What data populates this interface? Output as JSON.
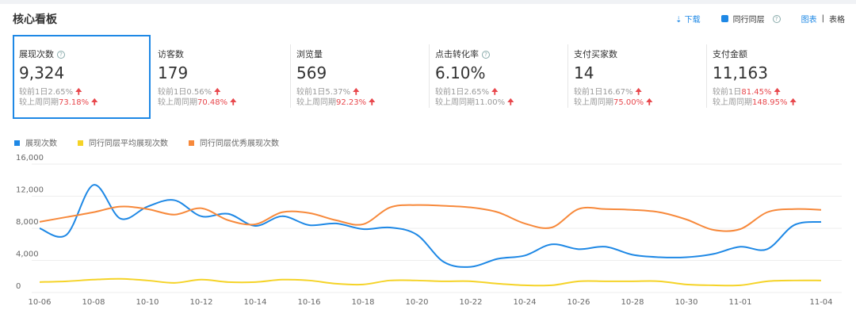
{
  "header": {
    "title": "核心看板",
    "download": "下载",
    "peer_toggle": "同行同层",
    "view_chart": "图表",
    "view_table": "表格"
  },
  "metrics": [
    {
      "label": "展现次数",
      "help": true,
      "value": "9,324",
      "selected": true,
      "changes": [
        {
          "label": "较前1日",
          "value": "2.65%",
          "color": "#999999"
        },
        {
          "label": "较上周同期",
          "value": "73.18%",
          "color": "#e8474c"
        }
      ]
    },
    {
      "label": "访客数",
      "help": false,
      "value": "179",
      "selected": false,
      "changes": [
        {
          "label": "较前1日",
          "value": "0.56%",
          "color": "#999999"
        },
        {
          "label": "较上周同期",
          "value": "70.48%",
          "color": "#e8474c"
        }
      ]
    },
    {
      "label": "浏览量",
      "help": false,
      "value": "569",
      "selected": false,
      "changes": [
        {
          "label": "较前1日",
          "value": "5.37%",
          "color": "#999999"
        },
        {
          "label": "较上周同期",
          "value": "92.23%",
          "color": "#e8474c"
        }
      ]
    },
    {
      "label": "点击转化率",
      "help": true,
      "value": "6.10%",
      "selected": false,
      "changes": [
        {
          "label": "较前1日",
          "value": "2.65%",
          "color": "#999999"
        },
        {
          "label": "较上周同期",
          "value": "11.00%",
          "color": "#999999"
        }
      ]
    },
    {
      "label": "支付买家数",
      "help": false,
      "value": "14",
      "selected": false,
      "changes": [
        {
          "label": "较前1日",
          "value": "16.67%",
          "color": "#999999"
        },
        {
          "label": "较上周同期",
          "value": "75.00%",
          "color": "#e8474c"
        }
      ]
    },
    {
      "label": "支付金额",
      "help": false,
      "value": "11,163",
      "selected": false,
      "changes": [
        {
          "label": "较前1日",
          "value": "81.45%",
          "color": "#e8474c"
        },
        {
          "label": "较上周同期",
          "value": "148.95%",
          "color": "#e8474c"
        }
      ]
    }
  ],
  "chart_data": {
    "type": "line",
    "categories": [
      "10-06",
      null,
      "10-08",
      null,
      "10-10",
      null,
      "10-12",
      null,
      "10-14",
      null,
      "10-16",
      null,
      "10-18",
      null,
      "10-20",
      null,
      "10-22",
      null,
      "10-24",
      null,
      "10-26",
      null,
      "10-28",
      null,
      "10-30",
      null,
      "11-01",
      null,
      null,
      "11-04"
    ],
    "series": [
      {
        "name": "展现次数",
        "color": "#1e88e5",
        "values": [
          8000,
          7200,
          13400,
          9200,
          10700,
          11500,
          9500,
          9800,
          8300,
          9500,
          8400,
          8600,
          7900,
          8100,
          7200,
          3800,
          3200,
          4200,
          4600,
          6000,
          5400,
          5700,
          4700,
          4400,
          4400,
          4800,
          5700,
          5400,
          8400,
          8800
        ]
      },
      {
        "name": "同行同层平均展现次数",
        "color": "#f5d327",
        "values": [
          1300,
          1400,
          1600,
          1700,
          1500,
          1200,
          1600,
          1300,
          1300,
          1600,
          1500,
          1100,
          1000,
          1500,
          1500,
          1400,
          1400,
          1100,
          900,
          900,
          1400,
          1400,
          1400,
          1400,
          1000,
          900,
          900,
          1400,
          1500,
          1500
        ]
      },
      {
        "name": "同行同层优秀展现次数",
        "color": "#f7893b",
        "values": [
          8800,
          9400,
          10000,
          10700,
          10400,
          9700,
          10500,
          9000,
          8500,
          10000,
          9900,
          9000,
          8500,
          10600,
          10900,
          10800,
          10600,
          10000,
          8600,
          8100,
          10400,
          10400,
          10300,
          10000,
          9100,
          7800,
          7900,
          10000,
          10400,
          10300
        ]
      }
    ],
    "ylim": [
      0,
      16000
    ],
    "yticks": [
      0,
      {
        "value": 4000,
        "label": "4,000"
      },
      {
        "value": 8000,
        "label": "8,000"
      },
      {
        "value": 12000,
        "label": "12,000"
      },
      {
        "value": 16000,
        "label": "16,000"
      }
    ],
    "grid": true
  }
}
